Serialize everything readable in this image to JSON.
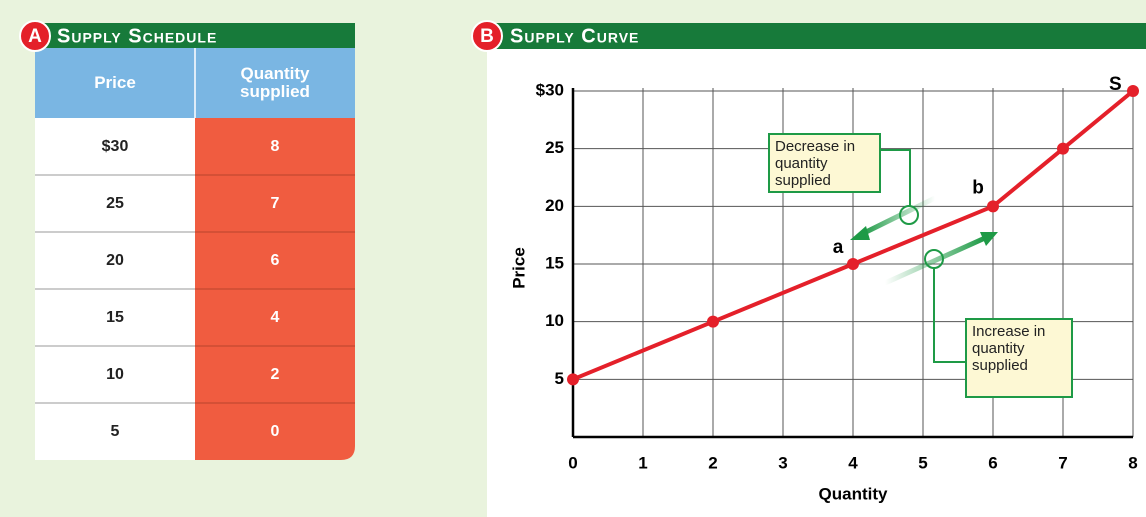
{
  "panel_a": {
    "badge": "A",
    "title": "Supply Schedule",
    "columns": [
      "Price",
      "Quantity supplied"
    ],
    "rows": [
      [
        "$30",
        8
      ],
      [
        25,
        7
      ],
      [
        20,
        6
      ],
      [
        15,
        4
      ],
      [
        10,
        2
      ],
      [
        5,
        0
      ]
    ]
  },
  "chart_data": {
    "type": "line",
    "badge": "B",
    "title": "Supply Curve",
    "x_label": "Quantity",
    "y_label": "Price",
    "x": [
      0,
      2,
      4,
      6,
      7,
      8
    ],
    "series": [
      {
        "name": "S",
        "color": "#e4202a",
        "values": [
          5,
          10,
          15,
          20,
          25,
          30
        ]
      }
    ],
    "xlim": [
      0,
      8
    ],
    "xticks": [
      0,
      1,
      2,
      3,
      4,
      5,
      6,
      7,
      8
    ],
    "ylim": [
      0,
      30
    ],
    "yticks": [
      0,
      5,
      10,
      15,
      20,
      {
        "value": 30,
        "label": "$30"
      },
      25
    ],
    "grid": true,
    "point_labels": [
      "a",
      "b"
    ],
    "annotations": [
      "Decrease in quantity supplied",
      "Increase in quantity supplied"
    ]
  }
}
